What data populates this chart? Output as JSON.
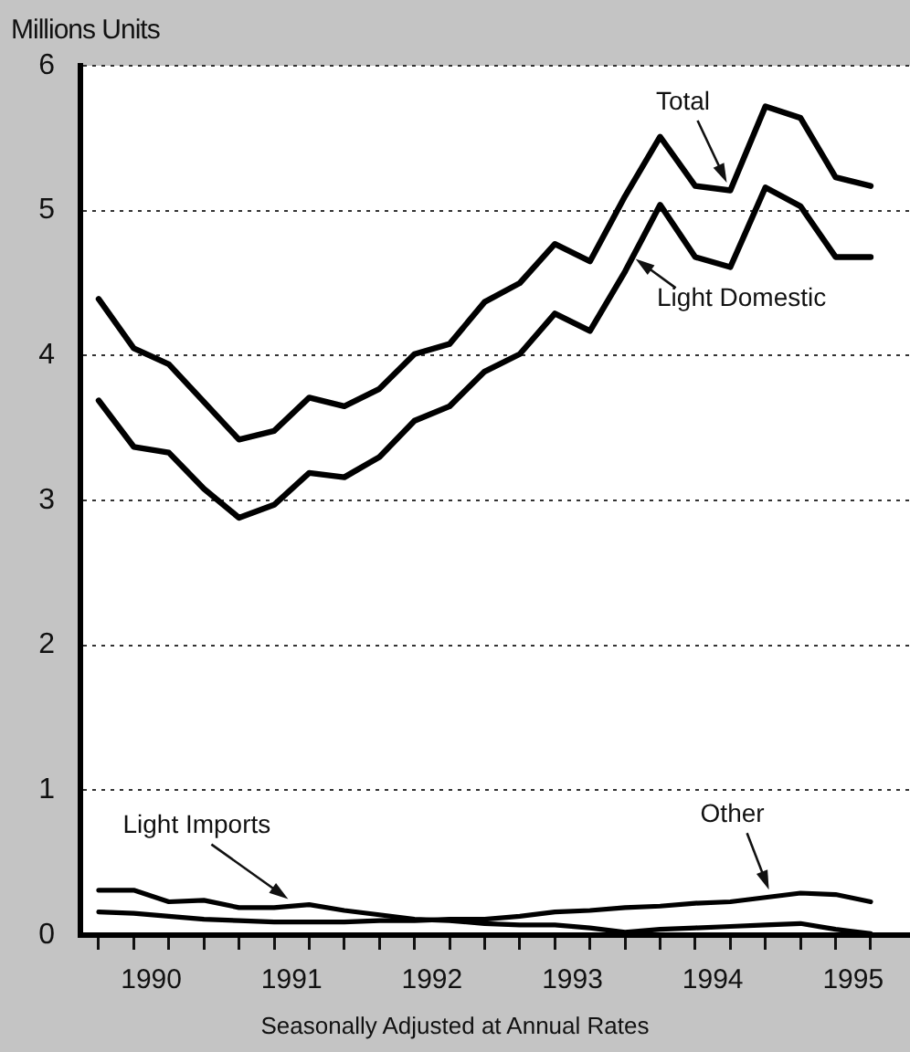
{
  "chart_data": {
    "type": "line",
    "ylabel": "Millions Units",
    "xlabel": "Seasonally Adjusted at Annual Rates",
    "x": [
      1990,
      1990.25,
      1990.5,
      1990.75,
      1991,
      1991.25,
      1991.5,
      1991.75,
      1992,
      1992.25,
      1992.5,
      1992.75,
      1993,
      1993.25,
      1993.5,
      1993.75,
      1994,
      1994.25,
      1994.5,
      1994.75,
      1995,
      1995.25,
      1995.5
    ],
    "series": [
      {
        "name": "Total",
        "color": "#000000",
        "values": [
          4.39,
          4.05,
          3.94,
          3.68,
          3.42,
          3.48,
          3.71,
          3.65,
          3.77,
          4.01,
          4.08,
          4.37,
          4.5,
          4.77,
          4.65,
          5.1,
          5.51,
          5.17,
          5.14,
          5.72,
          5.64,
          5.23,
          5.17
        ]
      },
      {
        "name": "Light Domestic",
        "color": "#000000",
        "values": [
          3.69,
          3.37,
          3.33,
          3.08,
          2.88,
          2.97,
          3.19,
          3.16,
          3.3,
          3.55,
          3.65,
          3.89,
          4.01,
          4.29,
          4.17,
          4.58,
          5.04,
          4.68,
          4.61,
          5.16,
          5.03,
          4.68,
          4.68
        ]
      },
      {
        "name": "Light Imports",
        "color": "#000000",
        "values": [
          0.31,
          0.31,
          0.23,
          0.24,
          0.19,
          0.19,
          0.21,
          0.17,
          0.14,
          0.11,
          0.1,
          0.08,
          0.07,
          0.07,
          0.05,
          0.02,
          0.04,
          0.05,
          0.06,
          0.07,
          0.08,
          0.04,
          0.01
        ]
      },
      {
        "name": "Other",
        "color": "#000000",
        "values": [
          0.16,
          0.15,
          0.13,
          0.11,
          0.1,
          0.09,
          0.09,
          0.09,
          0.1,
          0.1,
          0.11,
          0.11,
          0.13,
          0.16,
          0.17,
          0.19,
          0.2,
          0.22,
          0.23,
          0.26,
          0.29,
          0.28,
          0.23
        ]
      }
    ],
    "xlim": [
      1989.87,
      1995.78
    ],
    "xticks": [
      {
        "value": 1990,
        "label": null
      },
      {
        "value": 1990.25,
        "label": null
      },
      {
        "value": 1990.5,
        "label": null
      },
      {
        "value": 1990.75,
        "label": null
      },
      {
        "value": 1991,
        "label": null
      },
      {
        "value": 1991.25,
        "label": null
      },
      {
        "value": 1991.5,
        "label": null
      },
      {
        "value": 1991.75,
        "label": null
      },
      {
        "value": 1992,
        "label": null
      },
      {
        "value": 1992.25,
        "label": null
      },
      {
        "value": 1992.5,
        "label": null
      },
      {
        "value": 1992.75,
        "label": null
      },
      {
        "value": 1993,
        "label": null
      },
      {
        "value": 1993.25,
        "label": null
      },
      {
        "value": 1993.5,
        "label": null
      },
      {
        "value": 1993.75,
        "label": null
      },
      {
        "value": 1994,
        "label": null
      },
      {
        "value": 1994.25,
        "label": null
      },
      {
        "value": 1994.5,
        "label": null
      },
      {
        "value": 1994.75,
        "label": null
      },
      {
        "value": 1995,
        "label": null
      },
      {
        "value": 1995.25,
        "label": null
      },
      {
        "value": 1995.5,
        "label": null
      },
      {
        "value": 1990.375,
        "label": "1990"
      },
      {
        "value": 1991.375,
        "label": "1991"
      },
      {
        "value": 1992.375,
        "label": "1992"
      },
      {
        "value": 1993.375,
        "label": "1993"
      },
      {
        "value": 1994.375,
        "label": "1994"
      },
      {
        "value": 1995.375,
        "label": "1995"
      }
    ],
    "ylim": [
      0,
      6
    ],
    "yticks": [
      0,
      1,
      2,
      3,
      4,
      5,
      6
    ],
    "grid": "y",
    "legend": false,
    "marker": "none",
    "line_style": "solid"
  }
}
